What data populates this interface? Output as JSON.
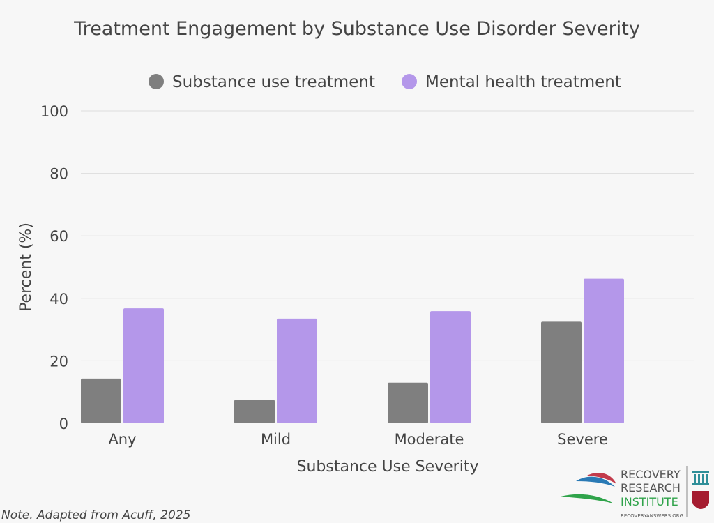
{
  "chart_data": {
    "type": "bar",
    "title": "Treatment Engagement by Substance Use Disorder Severity",
    "xlabel": "Substance Use Severity",
    "ylabel": "Percent (%)",
    "ylim": [
      0,
      100
    ],
    "yticks": [
      0,
      20,
      40,
      60,
      80,
      100
    ],
    "categories": [
      "Any",
      "Mild",
      "Moderate",
      "Severe"
    ],
    "series": [
      {
        "name": "Substance use treatment",
        "color": "#7f7f7f",
        "values": [
          14.3,
          7.5,
          13.0,
          32.5
        ]
      },
      {
        "name": "Mental health treatment",
        "color": "#b497ea",
        "values": [
          36.8,
          33.5,
          35.9,
          46.3
        ]
      }
    ],
    "legend_position": "top-center",
    "grid": true
  },
  "note": "Note. Adapted from Acuff, 2025",
  "logo": {
    "line1": "RECOVERY",
    "line2": "RESEARCH",
    "line3": "INSTITUTE",
    "url": "RECOVERYANSWERS.ORG"
  }
}
